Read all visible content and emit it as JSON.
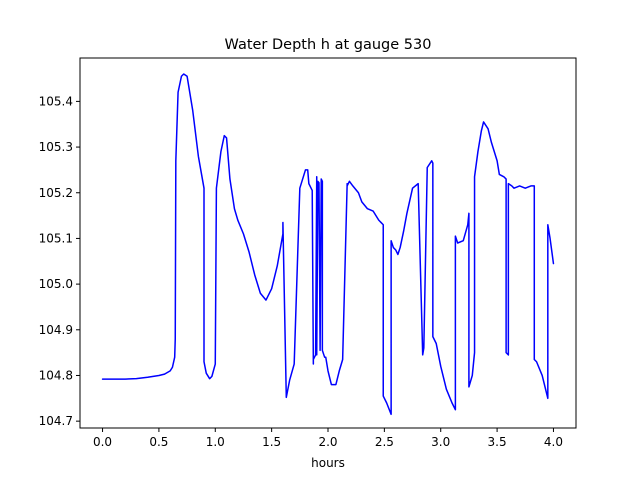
{
  "chart_data": {
    "type": "line",
    "title": "Water Depth h at gauge 530",
    "xlabel": "hours",
    "ylabel": "",
    "xlim": [
      -0.2,
      4.2
    ],
    "ylim": [
      104.685,
      105.495
    ],
    "x_ticks": [
      0.0,
      0.5,
      1.0,
      1.5,
      2.0,
      2.5,
      3.0,
      3.5,
      4.0
    ],
    "x_tick_labels": [
      "0.0",
      "0.5",
      "1.0",
      "1.5",
      "2.0",
      "2.5",
      "3.0",
      "3.5",
      "4.0"
    ],
    "y_ticks": [
      104.7,
      104.8,
      104.9,
      105.0,
      105.1,
      105.2,
      105.3,
      105.4
    ],
    "y_tick_labels": [
      "104.7",
      "104.8",
      "104.9",
      "105.0",
      "105.1",
      "105.2",
      "105.3",
      "105.4"
    ],
    "grid": false,
    "legend": "none",
    "series": [
      {
        "color": "#0000ff",
        "x": [
          0.0,
          0.2,
          0.3,
          0.4,
          0.5,
          0.55,
          0.6,
          0.62,
          0.64,
          0.645,
          0.65,
          0.67,
          0.7,
          0.72,
          0.75,
          0.8,
          0.85,
          0.9,
          0.9,
          0.92,
          0.95,
          0.97,
          1.0,
          1.01,
          1.01,
          1.05,
          1.08,
          1.1,
          1.13,
          1.17,
          1.2,
          1.25,
          1.3,
          1.35,
          1.4,
          1.45,
          1.5,
          1.55,
          1.6,
          1.6,
          1.63,
          1.63,
          1.66,
          1.7,
          1.75,
          1.8,
          1.82,
          1.83,
          1.85,
          1.86,
          1.87,
          1.87,
          1.89,
          1.9,
          1.9,
          1.91,
          1.92,
          1.93,
          1.94,
          1.95,
          1.95,
          1.97,
          1.98,
          1.98,
          2.0,
          2.03,
          2.07,
          2.1,
          2.13,
          2.17,
          2.17,
          2.19,
          2.22,
          2.27,
          2.3,
          2.35,
          2.4,
          2.45,
          2.47,
          2.49,
          2.49,
          2.52,
          2.56,
          2.56,
          2.58,
          2.6,
          2.62,
          2.64,
          2.67,
          2.7,
          2.75,
          2.8,
          2.84,
          2.85,
          2.85,
          2.88,
          2.88,
          2.92,
          2.93,
          2.93,
          2.96,
          3.0,
          3.05,
          3.1,
          3.13,
          3.13,
          3.15,
          3.2,
          3.24,
          3.25,
          3.25,
          3.28,
          3.3,
          3.3,
          3.33,
          3.36,
          3.38,
          3.42,
          3.45,
          3.5,
          3.52,
          3.56,
          3.58,
          3.58,
          3.6,
          3.6,
          3.63,
          3.65,
          3.7,
          3.75,
          3.8,
          3.83,
          3.83,
          3.85,
          3.9,
          3.95,
          3.95,
          3.97,
          4.0
        ],
        "y": [
          104.792,
          104.792,
          104.793,
          104.796,
          104.8,
          104.803,
          104.81,
          104.818,
          104.84,
          104.88,
          105.27,
          105.42,
          105.455,
          105.46,
          105.455,
          105.38,
          105.28,
          105.21,
          104.83,
          104.805,
          104.793,
          104.798,
          104.825,
          105.21,
          105.21,
          105.29,
          105.325,
          105.32,
          105.23,
          105.165,
          105.14,
          105.11,
          105.07,
          105.02,
          104.98,
          104.965,
          104.99,
          105.04,
          105.11,
          105.135,
          104.752,
          104.752,
          104.79,
          104.825,
          105.21,
          105.25,
          105.25,
          105.22,
          105.21,
          105.205,
          104.825,
          104.835,
          104.845,
          105.235,
          104.845,
          105.225,
          105.222,
          104.855,
          105.23,
          105.225,
          104.855,
          104.84,
          104.84,
          104.84,
          104.81,
          104.78,
          104.78,
          104.81,
          104.835,
          105.22,
          105.215,
          105.225,
          105.215,
          105.2,
          105.18,
          105.165,
          105.16,
          105.14,
          105.135,
          105.13,
          104.755,
          104.74,
          104.715,
          105.095,
          105.08,
          105.075,
          105.065,
          105.08,
          105.115,
          105.155,
          105.21,
          105.22,
          104.845,
          104.86,
          104.86,
          105.25,
          105.255,
          105.27,
          105.265,
          104.885,
          104.87,
          104.82,
          104.77,
          104.74,
          104.725,
          105.105,
          105.09,
          105.095,
          105.13,
          105.155,
          104.775,
          104.8,
          104.85,
          105.235,
          105.29,
          105.335,
          105.355,
          105.34,
          105.31,
          105.27,
          105.24,
          105.235,
          105.23,
          104.85,
          104.845,
          105.22,
          105.215,
          105.21,
          105.215,
          105.21,
          105.215,
          105.215,
          104.835,
          104.83,
          104.8,
          104.75,
          105.13,
          105.1,
          105.045
        ]
      }
    ]
  }
}
